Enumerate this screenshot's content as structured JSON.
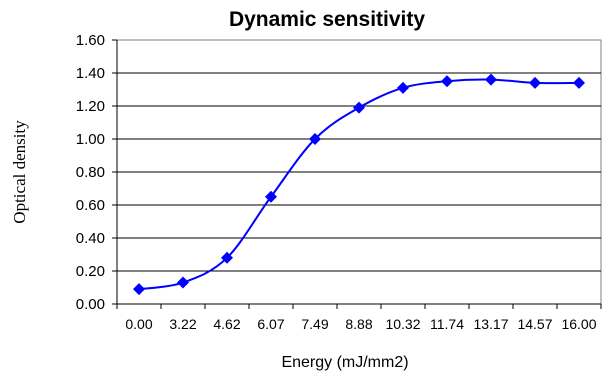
{
  "chart_data": {
    "type": "line",
    "title": "Dynamic sensitivity",
    "xlabel": "Energy (mJ/mm2)",
    "ylabel": "Optical density",
    "categories": [
      "0.00",
      "3.22",
      "4.62",
      "6.07",
      "7.49",
      "8.88",
      "10.32",
      "11.74",
      "13.17",
      "14.57",
      "16.00"
    ],
    "y_ticks": [
      "0.00",
      "0.20",
      "0.40",
      "0.60",
      "0.80",
      "1.00",
      "1.20",
      "1.40",
      "1.60"
    ],
    "ylim": [
      0,
      1.6
    ],
    "series": [
      {
        "values": [
          0.09,
          0.13,
          0.28,
          0.65,
          1.0,
          1.19,
          1.31,
          1.35,
          1.36,
          1.34,
          1.34
        ],
        "color": "#0000ff",
        "marker": "diamond",
        "smooth": true
      }
    ],
    "grid": {
      "horizontal": true,
      "vertical": false
    },
    "legend": "none",
    "colors": {
      "gridline": "#000000",
      "axis": "#000000",
      "plot_border": "#808080"
    }
  }
}
